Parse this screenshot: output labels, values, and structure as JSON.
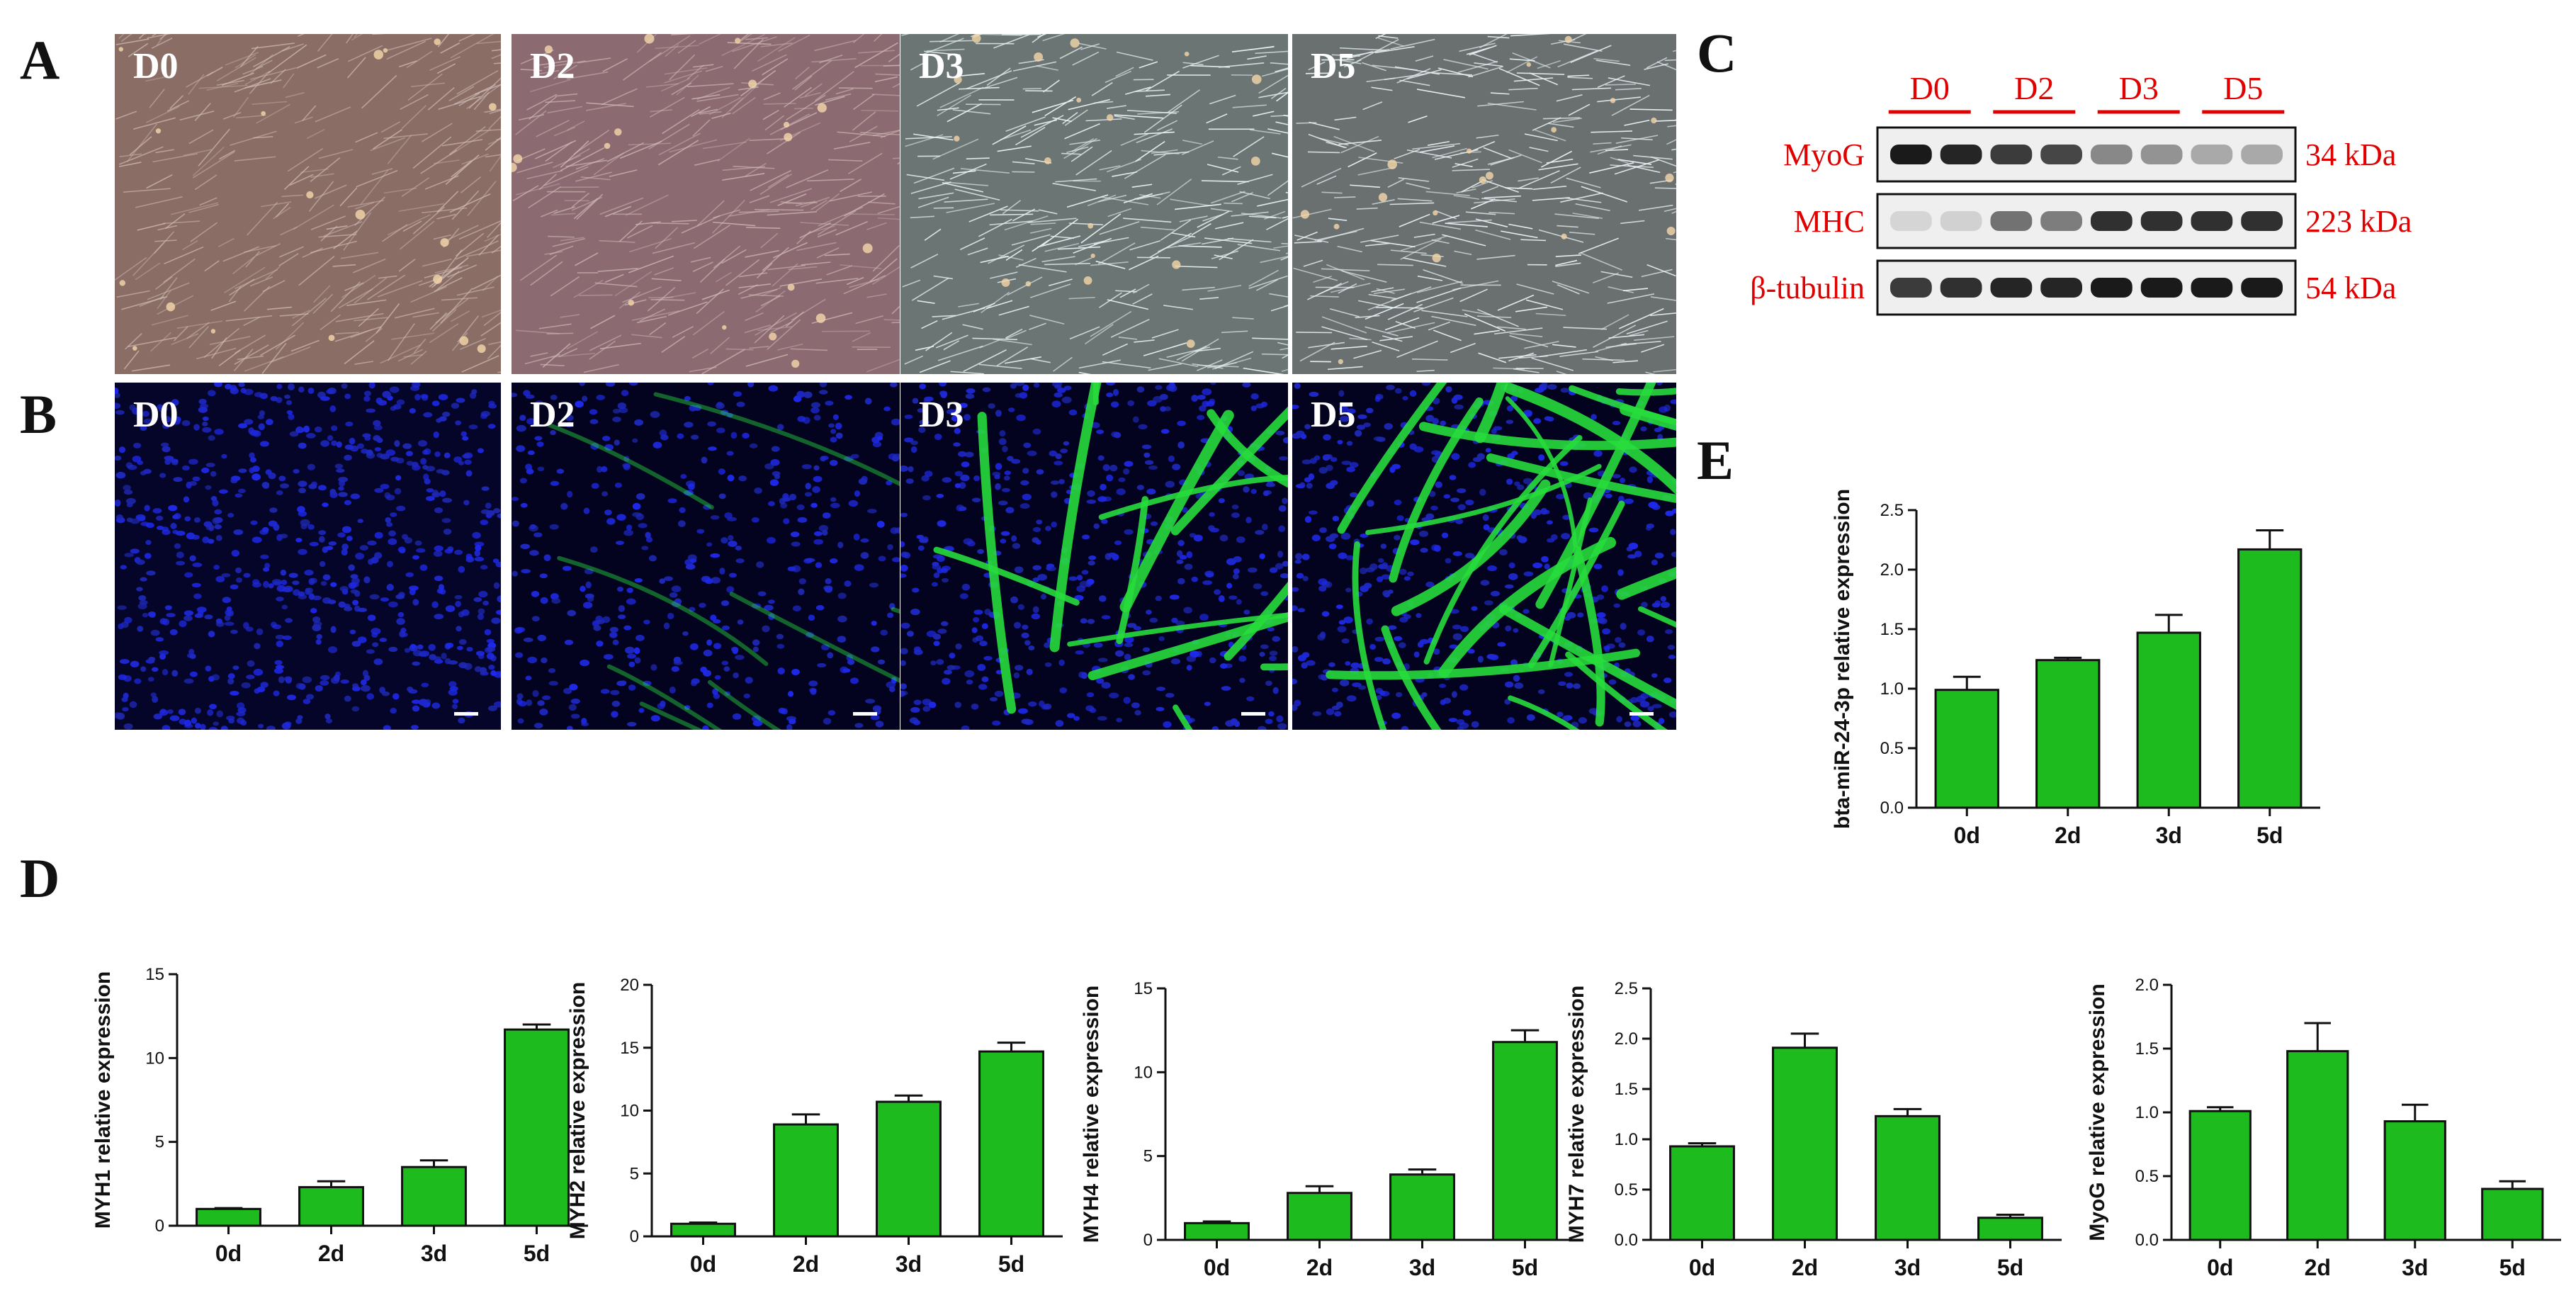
{
  "panel_labels": {
    "A": "A",
    "B": "B",
    "C": "C",
    "D": "D",
    "E": "E"
  },
  "brightfield_panels": [
    {
      "label": "D0",
      "tint": "#8a6e66"
    },
    {
      "label": "D2",
      "tint": "#8c6a72"
    },
    {
      "label": "D3",
      "tint": "#6b7574"
    },
    {
      "label": "D5",
      "tint": "#6a6f70"
    }
  ],
  "fluorescence_panels": [
    {
      "label": "D0",
      "green": 0.0
    },
    {
      "label": "D2",
      "green": 0.3
    },
    {
      "label": "D3",
      "green": 0.55
    },
    {
      "label": "D5",
      "green": 1.0
    }
  ],
  "western_blot": {
    "groups": [
      "D0",
      "D2",
      "D3",
      "D5"
    ],
    "proteins": [
      {
        "name": "MyoG",
        "size": "34 kDa",
        "intensity": [
          0.95,
          0.9,
          0.8,
          0.75,
          0.45,
          0.4,
          0.3,
          0.3
        ]
      },
      {
        "name": "MHC",
        "size": "223 kDa",
        "intensity": [
          0.1,
          0.12,
          0.55,
          0.5,
          0.85,
          0.85,
          0.85,
          0.85
        ]
      },
      {
        "name": "β-tubulin",
        "size": "54 kDa",
        "intensity": [
          0.8,
          0.85,
          0.9,
          0.9,
          0.95,
          0.95,
          0.95,
          0.95
        ]
      }
    ],
    "color": "#e00000"
  },
  "chart_data": [
    {
      "id": "MYH1",
      "type": "bar",
      "ylabel": "MYH1 relative expression",
      "categories": [
        "0d",
        "2d",
        "3d",
        "5d"
      ],
      "values": [
        1.0,
        2.3,
        3.5,
        11.7
      ],
      "errors": [
        0.05,
        0.35,
        0.4,
        0.3
      ],
      "ylim": [
        0,
        15
      ],
      "yticks": [
        "0",
        "5",
        "10",
        "15"
      ],
      "color": "#1dbb1d"
    },
    {
      "id": "MYH2",
      "type": "bar",
      "ylabel": "MYH2 relative expression",
      "categories": [
        "0d",
        "2d",
        "3d",
        "5d"
      ],
      "values": [
        1.0,
        8.9,
        10.7,
        14.7
      ],
      "errors": [
        0.1,
        0.8,
        0.5,
        0.7
      ],
      "ylim": [
        0,
        20
      ],
      "yticks": [
        "0",
        "5",
        "10",
        "15",
        "20"
      ],
      "color": "#1dbb1d"
    },
    {
      "id": "MYH4",
      "type": "bar",
      "ylabel": "MYH4 relative expression",
      "categories": [
        "0d",
        "2d",
        "3d",
        "5d"
      ],
      "values": [
        1.0,
        2.8,
        3.9,
        11.8
      ],
      "errors": [
        0.1,
        0.4,
        0.3,
        0.7
      ],
      "ylim": [
        0,
        15
      ],
      "yticks": [
        "0",
        "5",
        "10",
        "15"
      ],
      "color": "#1dbb1d"
    },
    {
      "id": "MYH7",
      "type": "bar",
      "ylabel": "MYH7 relative expression",
      "categories": [
        "0d",
        "2d",
        "3d",
        "5d"
      ],
      "values": [
        0.93,
        1.91,
        1.23,
        0.22
      ],
      "errors": [
        0.03,
        0.14,
        0.07,
        0.03
      ],
      "ylim": [
        0,
        2.5
      ],
      "yticks": [
        "0.0",
        "0.5",
        "1.0",
        "1.5",
        "2.0",
        "2.5"
      ],
      "color": "#1dbb1d"
    },
    {
      "id": "MyoG",
      "type": "bar",
      "ylabel": "MyoG relative expression",
      "categories": [
        "0d",
        "2d",
        "3d",
        "5d"
      ],
      "values": [
        1.01,
        1.48,
        0.93,
        0.4
      ],
      "errors": [
        0.03,
        0.22,
        0.13,
        0.06
      ],
      "ylim": [
        0,
        2.0
      ],
      "yticks": [
        "0.0",
        "0.5",
        "1.0",
        "1.5",
        "2.0"
      ],
      "color": "#1dbb1d"
    },
    {
      "id": "miR24",
      "type": "bar",
      "ylabel": "bta-miR-24-3p relative expression",
      "categories": [
        "0d",
        "2d",
        "3d",
        "5d"
      ],
      "values": [
        0.99,
        1.24,
        1.47,
        2.17
      ],
      "errors": [
        0.11,
        0.02,
        0.15,
        0.16
      ],
      "ylim": [
        0,
        2.5
      ],
      "yticks": [
        "0.0",
        "0.5",
        "1.0",
        "1.5",
        "2.0",
        "2.5"
      ],
      "color": "#1dbb1d"
    }
  ]
}
